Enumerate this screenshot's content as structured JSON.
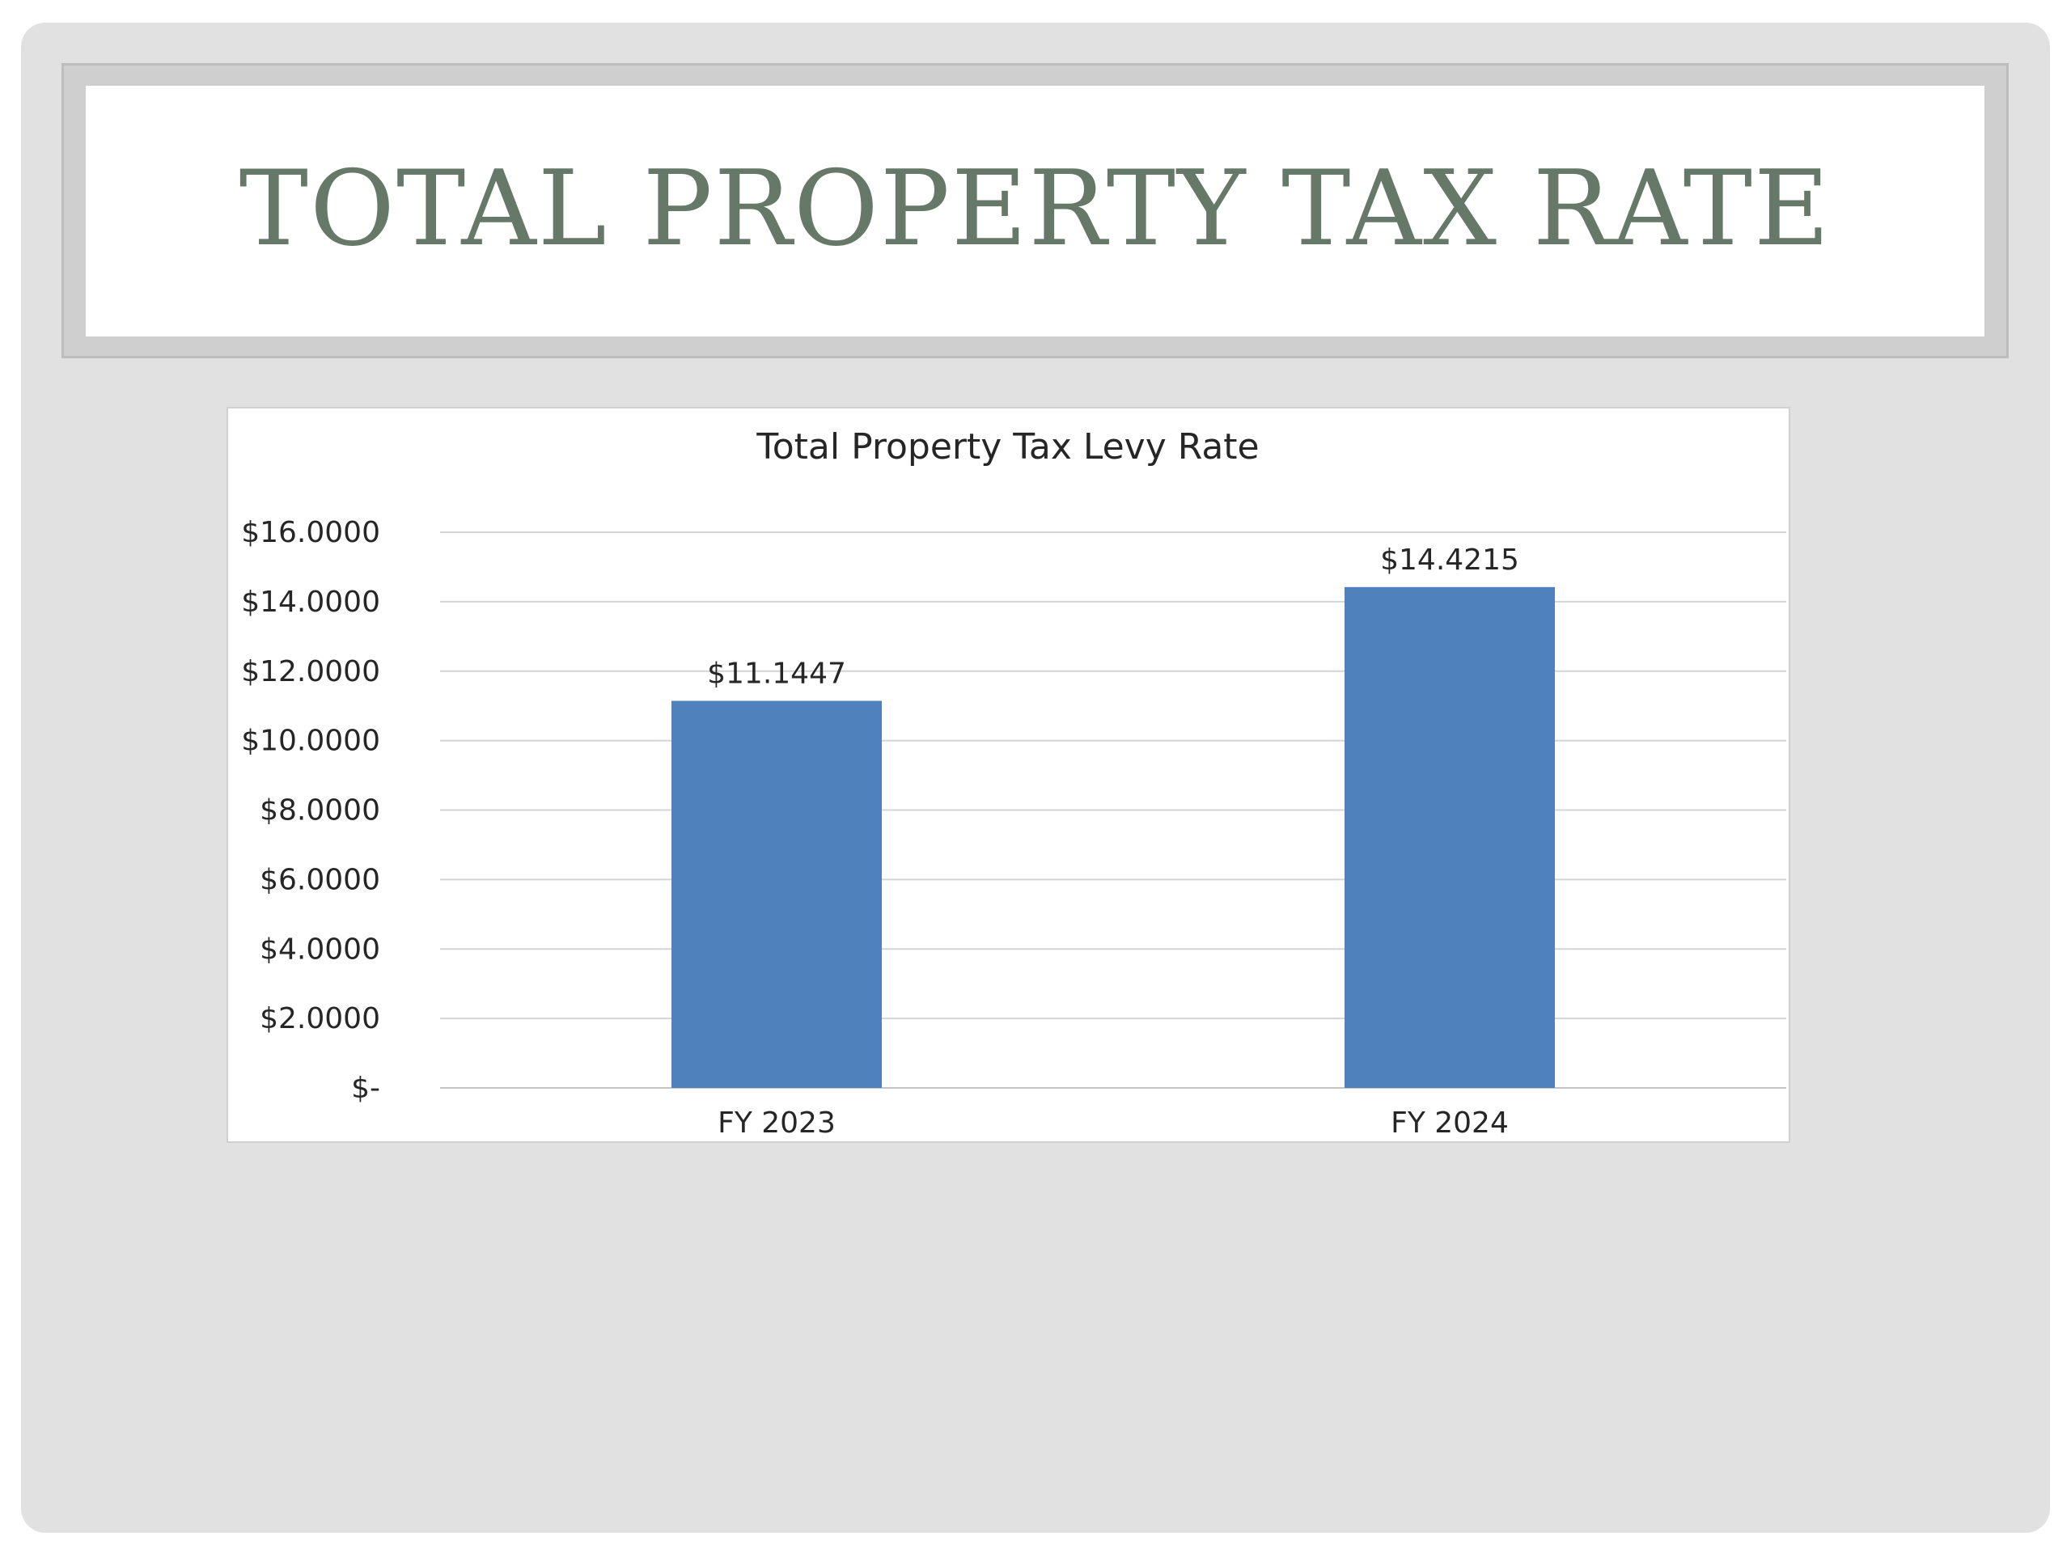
{
  "slide": {
    "title": "TOTAL PROPERTY TAX RATE"
  },
  "colors": {
    "background": "#e1e1e1",
    "title_text": "#667868",
    "bar": "#4f81bd"
  },
  "chart_data": {
    "type": "bar",
    "title": "Total Property Tax Levy Rate",
    "categories": [
      "FY 2023",
      "FY 2024"
    ],
    "values": [
      11.1447,
      14.4215
    ],
    "data_labels": [
      "$11.1447",
      "$14.4215"
    ],
    "ylim": [
      0,
      16
    ],
    "y_ticks": [
      0,
      2,
      4,
      6,
      8,
      10,
      12,
      14,
      16
    ],
    "y_tick_labels": [
      "$-",
      "$2.0000",
      "$4.0000",
      "$6.0000",
      "$8.0000",
      "$10.0000",
      "$12.0000",
      "$14.0000",
      "$16.0000"
    ],
    "xlabel": "",
    "ylabel": "",
    "grid": true,
    "legend": "none",
    "bar_color": "#4f81bd"
  }
}
